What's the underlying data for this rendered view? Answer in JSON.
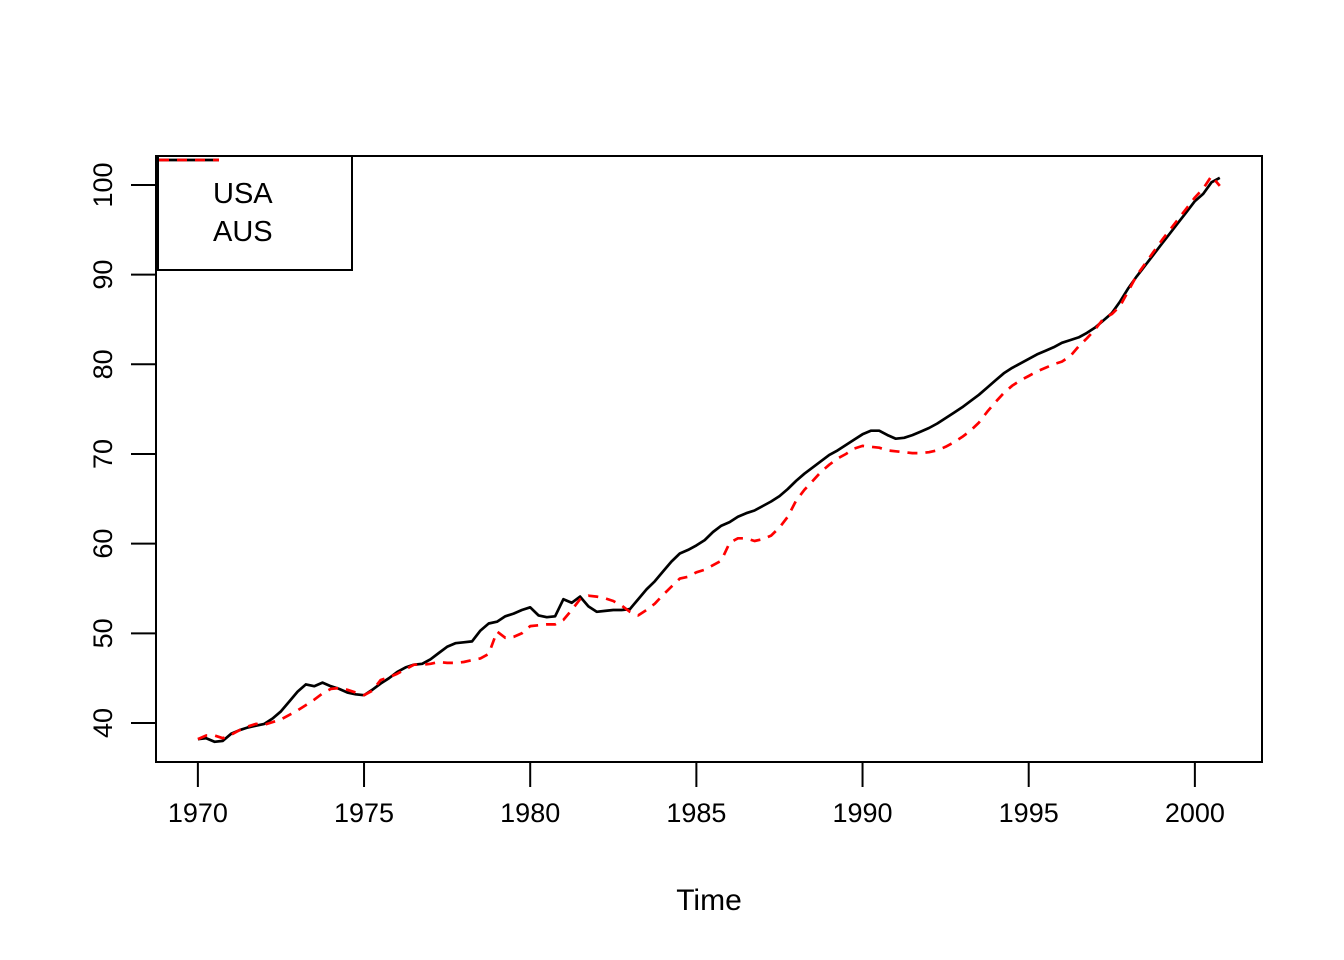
{
  "figure": {
    "background": "#FFFFFF",
    "foreground": "#000000"
  },
  "legend": {
    "entries": [
      {
        "label": "USA",
        "color": "#000000",
        "line_style": "solid"
      },
      {
        "label": "AUS",
        "color": "#FF0000",
        "line_style": "dashed"
      }
    ]
  },
  "chart_data": {
    "type": "line",
    "title": "",
    "xlabel": "Time",
    "ylabel": "",
    "x_start": 1970,
    "frequency": 4,
    "x_ticks": [
      "1970",
      "1975",
      "1980",
      "1985",
      "1990",
      "1995",
      "2000"
    ],
    "x_tick_values": [
      1970,
      1975,
      1980,
      1985,
      1990,
      1995,
      2000
    ],
    "y_ticks": [
      "40",
      "50",
      "60",
      "70",
      "80",
      "90",
      "100"
    ],
    "y_tick_values": [
      40,
      50,
      60,
      70,
      80,
      90,
      100
    ],
    "xlim": [
      1968.74,
      2002.02
    ],
    "ylim": [
      35.65,
      103.23
    ],
    "grid": false,
    "legend_position": "topleft",
    "series": [
      {
        "name": "USA",
        "color": "#000000",
        "line_style": "solid",
        "values": [
          38.2,
          38.3,
          37.9,
          38.0,
          38.8,
          39.2,
          39.5,
          39.7,
          39.9,
          40.5,
          41.3,
          42.4,
          43.5,
          44.3,
          44.1,
          44.5,
          44.1,
          43.8,
          43.4,
          43.2,
          43.1,
          43.7,
          44.4,
          45.0,
          45.7,
          46.2,
          46.5,
          46.6,
          47.1,
          47.8,
          48.5,
          48.9,
          49.0,
          49.1,
          50.3,
          51.1,
          51.3,
          51.9,
          52.2,
          52.6,
          52.9,
          52.0,
          51.8,
          51.9,
          53.8,
          53.4,
          54.1,
          53.0,
          52.4,
          52.5,
          52.6,
          52.6,
          52.7,
          53.8,
          54.9,
          55.8,
          56.9,
          58.0,
          58.9,
          59.3,
          59.8,
          60.4,
          61.3,
          62.0,
          62.4,
          63.0,
          63.4,
          63.7,
          64.2,
          64.7,
          65.3,
          66.1,
          67.0,
          67.8,
          68.5,
          69.2,
          69.9,
          70.4,
          71.0,
          71.6,
          72.2,
          72.6,
          72.6,
          72.1,
          71.7,
          71.8,
          72.1,
          72.5,
          72.9,
          73.4,
          74.0,
          74.6,
          75.2,
          75.9,
          76.6,
          77.4,
          78.2,
          79.0,
          79.6,
          80.1,
          80.6,
          81.1,
          81.5,
          81.9,
          82.4,
          82.7,
          83.0,
          83.5,
          84.1,
          84.9,
          85.7,
          87.0,
          88.5,
          89.8,
          91.0,
          92.2,
          93.4,
          94.6,
          95.8,
          97.0,
          98.2,
          99.0,
          100.3,
          100.8
        ]
      },
      {
        "name": "AUS",
        "color": "#FF0000",
        "line_style": "dashed",
        "values": [
          38.2,
          38.6,
          38.6,
          38.3,
          38.7,
          39.2,
          39.6,
          39.9,
          39.8,
          40.1,
          40.4,
          40.9,
          41.4,
          42.0,
          42.6,
          43.3,
          43.8,
          43.9,
          43.7,
          43.4,
          43.1,
          43.6,
          44.8,
          45.1,
          45.5,
          46.0,
          46.5,
          46.5,
          46.6,
          46.8,
          46.7,
          46.7,
          46.8,
          47.0,
          47.2,
          47.7,
          50.2,
          49.5,
          49.6,
          50.0,
          50.8,
          50.9,
          51.0,
          51.0,
          51.5,
          52.6,
          53.8,
          54.2,
          54.1,
          53.9,
          53.6,
          53.1,
          52.4,
          52.0,
          52.6,
          53.3,
          54.3,
          55.2,
          56.1,
          56.3,
          56.8,
          57.1,
          57.6,
          58.1,
          60.1,
          60.6,
          60.6,
          60.3,
          60.5,
          60.9,
          61.8,
          63.0,
          64.8,
          66.0,
          67.0,
          68.0,
          68.8,
          69.5,
          70.0,
          70.6,
          70.9,
          70.8,
          70.7,
          70.4,
          70.3,
          70.2,
          70.1,
          70.1,
          70.2,
          70.4,
          70.8,
          71.3,
          71.9,
          72.6,
          73.5,
          74.7,
          75.8,
          76.8,
          77.6,
          78.2,
          78.7,
          79.2,
          79.6,
          80.0,
          80.3,
          80.9,
          82.0,
          82.9,
          83.9,
          85.1,
          85.6,
          86.5,
          88.2,
          89.9,
          91.2,
          92.5,
          93.8,
          95.0,
          96.2,
          97.4,
          98.6,
          99.6,
          101.0,
          99.9
        ]
      }
    ]
  }
}
